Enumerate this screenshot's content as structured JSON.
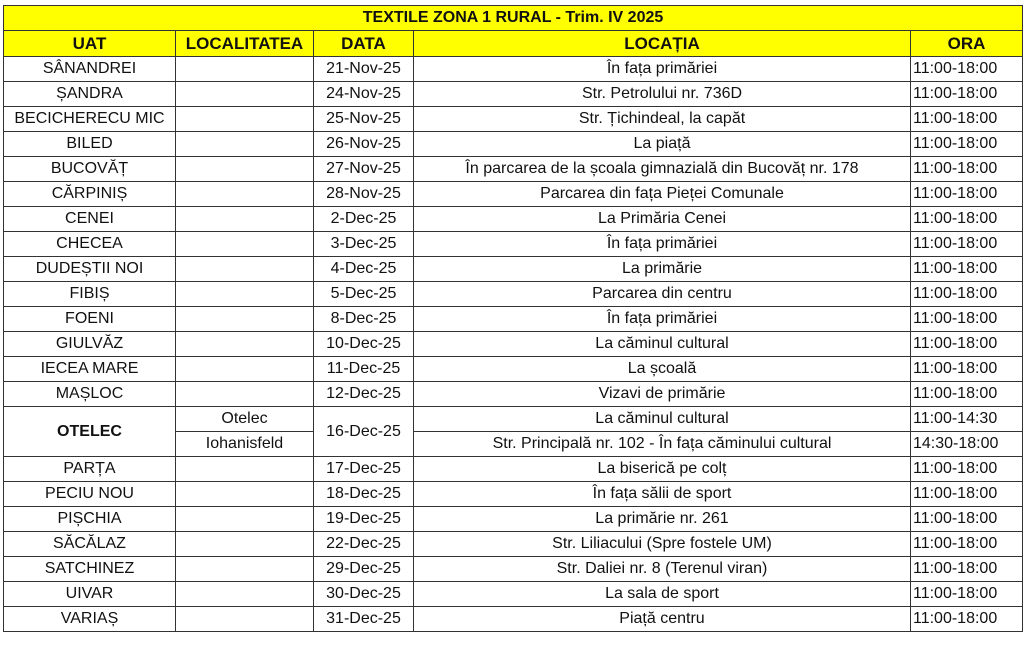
{
  "title": "TEXTILE ZONA 1 RURAL - Trim. IV 2025",
  "headers": {
    "uat": "UAT",
    "localitatea": "LOCALITATEA",
    "data": "DATA",
    "locatia": "LOCAȚIA",
    "ora": "ORA"
  },
  "colors": {
    "header_bg": "#ffff00",
    "border": "#333333"
  },
  "rows": [
    {
      "uat": "SÂNANDREI",
      "loc": "",
      "data": "21-Nov-25",
      "locatia": "În fața primăriei",
      "ora": "11:00-18:00"
    },
    {
      "uat": "ȘANDRA",
      "loc": "",
      "data": "24-Nov-25",
      "locatia": "Str. Petrolului nr. 736D",
      "ora": "11:00-18:00"
    },
    {
      "uat": "BECICHERECU MIC",
      "loc": "",
      "data": "25-Nov-25",
      "locatia": "Str. Țichindeal, la capăt",
      "ora": "11:00-18:00"
    },
    {
      "uat": "BILED",
      "loc": "",
      "data": "26-Nov-25",
      "locatia": "La piață",
      "ora": "11:00-18:00"
    },
    {
      "uat": "BUCOVĂȚ",
      "loc": "",
      "data": "27-Nov-25",
      "locatia": "În parcarea de la școala gimnazială din Bucovăț nr. 178",
      "ora": "11:00-18:00"
    },
    {
      "uat": "CĂRPINIȘ",
      "loc": "",
      "data": "28-Nov-25",
      "locatia": "Parcarea din fața Pieței Comunale",
      "ora": "11:00-18:00"
    },
    {
      "uat": "CENEI",
      "loc": "",
      "data": "2-Dec-25",
      "locatia": "La Primăria Cenei",
      "ora": "11:00-18:00"
    },
    {
      "uat": "CHECEA",
      "loc": "",
      "data": "3-Dec-25",
      "locatia": "În fața primăriei",
      "ora": "11:00-18:00"
    },
    {
      "uat": "DUDEȘTII NOI",
      "loc": "",
      "data": "4-Dec-25",
      "locatia": "La primărie",
      "ora": "11:00-18:00"
    },
    {
      "uat": "FIBIȘ",
      "loc": "",
      "data": "5-Dec-25",
      "locatia": "Parcarea din centru",
      "ora": "11:00-18:00"
    },
    {
      "uat": "FOENI",
      "loc": "",
      "data": "8-Dec-25",
      "locatia": "În fața primăriei",
      "ora": "11:00-18:00"
    },
    {
      "uat": "GIULVĂZ",
      "loc": "",
      "data": "10-Dec-25",
      "locatia": "La căminul cultural",
      "ora": "11:00-18:00"
    },
    {
      "uat": "IECEA MARE",
      "loc": "",
      "data": "11-Dec-25",
      "locatia": "La școală",
      "ora": "11:00-18:00"
    },
    {
      "uat": "MAȘLOC",
      "loc": "",
      "data": "12-Dec-25",
      "locatia": "Vizavi de primărie",
      "ora": "11:00-18:00"
    }
  ],
  "otelec": {
    "uat": "OTELEC",
    "data": "16-Dec-25",
    "sub": [
      {
        "loc": "Otelec",
        "locatia": "La căminul cultural",
        "ora": "11:00-14:30"
      },
      {
        "loc": "Iohanisfeld",
        "locatia": "Str. Principală nr. 102 - În fața căminului cultural",
        "ora": "14:30-18:00"
      }
    ]
  },
  "rows2": [
    {
      "uat": "PARȚA",
      "loc": "",
      "data": "17-Dec-25",
      "locatia": "La biserică pe colț",
      "ora": "11:00-18:00"
    },
    {
      "uat": "PECIU NOU",
      "loc": "",
      "data": "18-Dec-25",
      "locatia": "În fața sălii de sport",
      "ora": "11:00-18:00"
    },
    {
      "uat": "PIȘCHIA",
      "loc": "",
      "data": "19-Dec-25",
      "locatia": "La primărie nr. 261",
      "ora": "11:00-18:00"
    },
    {
      "uat": "SĂCĂLAZ",
      "loc": "",
      "data": "22-Dec-25",
      "locatia": "Str. Liliacului (Spre fostele UM)",
      "ora": "11:00-18:00"
    },
    {
      "uat": "SATCHINEZ",
      "loc": "",
      "data": "29-Dec-25",
      "locatia": "Str. Daliei nr. 8 (Terenul viran)",
      "ora": "11:00-18:00"
    },
    {
      "uat": "UIVAR",
      "loc": "",
      "data": "30-Dec-25",
      "locatia": "La sala de sport",
      "ora": "11:00-18:00"
    },
    {
      "uat": "VARIAȘ",
      "loc": "",
      "data": "31-Dec-25",
      "locatia": "Piață centru",
      "ora": "11:00-18:00"
    }
  ]
}
